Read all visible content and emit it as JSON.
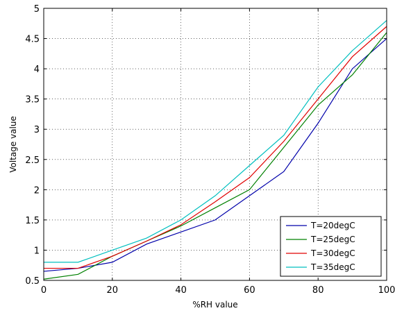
{
  "chart_data": {
    "type": "line",
    "title": "",
    "xlabel": "%RH value",
    "ylabel": "Voltage value",
    "xlim": [
      0,
      100
    ],
    "ylim": [
      0.5,
      5
    ],
    "x_ticks": [
      0,
      20,
      40,
      60,
      80,
      100
    ],
    "y_ticks": [
      0.5,
      1,
      1.5,
      2,
      2.5,
      3,
      3.5,
      4,
      4.5,
      5
    ],
    "grid": true,
    "legend_position": "bottom-right",
    "x": [
      0,
      10,
      20,
      30,
      40,
      50,
      60,
      70,
      80,
      90,
      100
    ],
    "series": [
      {
        "name": "T=20degC",
        "color": "#0000aa",
        "values": [
          0.65,
          0.7,
          0.8,
          1.1,
          1.3,
          1.5,
          1.9,
          2.3,
          3.1,
          4.0,
          4.5
        ]
      },
      {
        "name": "T=25degC",
        "color": "#008000",
        "values": [
          0.52,
          0.6,
          0.9,
          1.15,
          1.4,
          1.7,
          2.0,
          2.7,
          3.4,
          3.9,
          4.6
        ]
      },
      {
        "name": "T=30degC",
        "color": "#e00000",
        "values": [
          0.7,
          0.7,
          0.9,
          1.15,
          1.42,
          1.8,
          2.2,
          2.8,
          3.5,
          4.2,
          4.7
        ]
      },
      {
        "name": "T=35degC",
        "color": "#00bfbf",
        "values": [
          0.8,
          0.8,
          1.0,
          1.2,
          1.5,
          1.9,
          2.4,
          2.9,
          3.7,
          4.3,
          4.8
        ]
      }
    ]
  }
}
